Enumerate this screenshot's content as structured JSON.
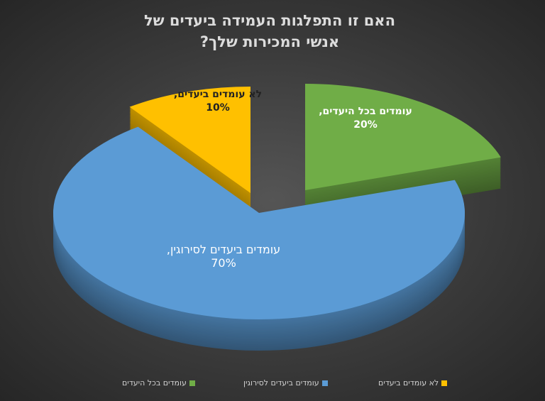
{
  "chart_data": {
    "type": "pie",
    "title": "האם זו התפלגות העמידה ביעדים של אנשי המכירות שלך?",
    "categories": [
      "עומדים בכל היעדים",
      "עומדים ביעדים לסירוגין",
      "לא עומדים ביעדים"
    ],
    "values": [
      20,
      70,
      10
    ],
    "value_labels": [
      "עומדים בכל היעדים, 20%",
      "עומדים ביעדים לסירוגין, 70%",
      "לא עומדים ביעדים, 10%"
    ],
    "colors": [
      "#70ad47",
      "#5b9bd5",
      "#ffc000"
    ],
    "legend": "bottom"
  }
}
